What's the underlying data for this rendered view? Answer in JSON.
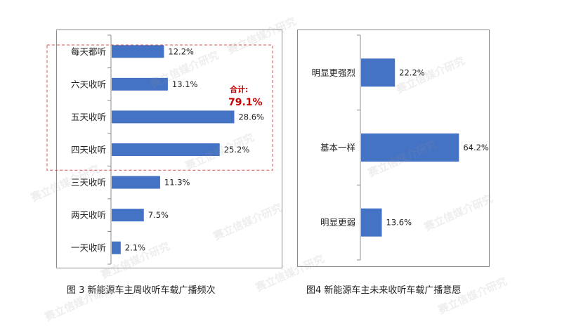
{
  "watermark_text": "赛立信媒介研究",
  "colors": {
    "bar": "#4472c4",
    "highlight_box": "#d9534f",
    "annotation": "#c00000"
  },
  "chart_data": [
    {
      "type": "bar",
      "orientation": "horizontal",
      "title": "图 3 新能源车主周收听车载广播频次",
      "categories": [
        "每天都听",
        "六天收听",
        "五天收听",
        "四天收听",
        "三天收听",
        "两天收听",
        "一天收听"
      ],
      "values": [
        12.2,
        13.1,
        28.6,
        25.2,
        11.3,
        7.5,
        2.1
      ],
      "value_labels": [
        "12.2%",
        "13.1%",
        "28.6%",
        "25.2%",
        "11.3%",
        "7.5%",
        "2.1%"
      ],
      "xlim": [
        0,
        30
      ],
      "grid": false,
      "annotation": {
        "label": "合计:",
        "value": "79.1%",
        "covers": [
          "每天都听",
          "六天收听",
          "五天收听",
          "四天收听"
        ]
      }
    },
    {
      "type": "bar",
      "orientation": "horizontal",
      "title": "图4 新能源车主未来收听车载广播意愿",
      "categories": [
        "明显更强烈",
        "基本一样",
        "明显更弱"
      ],
      "values": [
        22.2,
        64.2,
        13.6
      ],
      "value_labels": [
        "22.2%",
        "64.2%",
        "13.6%"
      ],
      "xlim": [
        0,
        90
      ],
      "grid": false
    }
  ]
}
